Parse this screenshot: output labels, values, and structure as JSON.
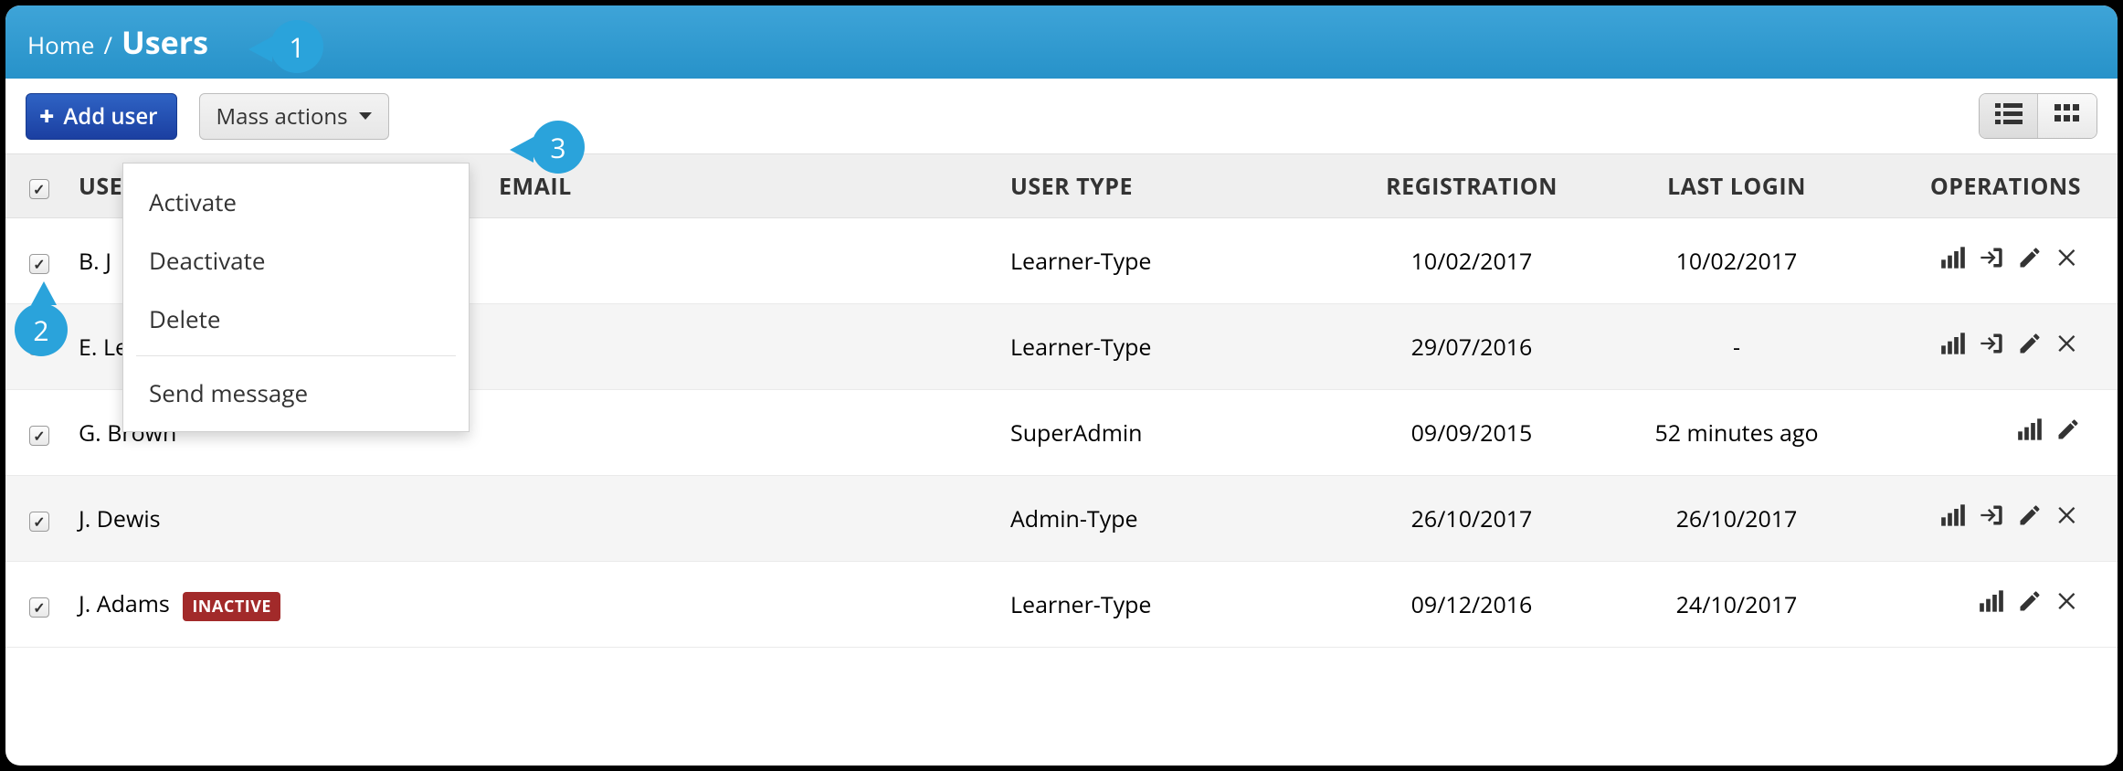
{
  "colors": {
    "header_gradient_top": "#3ea4d8",
    "header_gradient_bottom": "#2792c9",
    "primary_btn_top": "#2f63c4",
    "primary_btn_bottom": "#1b3fa1",
    "callout": "#2aa3db",
    "badge_inactive": "#a22a2a",
    "row_alt": "#f5f5f5",
    "thead_bg": "#efefef",
    "text": "#333333"
  },
  "breadcrumb": {
    "home": "Home",
    "sep": "/",
    "current": "Users"
  },
  "toolbar": {
    "add_user": "Add user",
    "mass_actions": "Mass actions"
  },
  "mass_actions_menu": {
    "activate": "Activate",
    "deactivate": "Deactivate",
    "delete": "Delete",
    "send_message": "Send message"
  },
  "callouts": {
    "c1": "1",
    "c2": "2",
    "c3": "3"
  },
  "columns": {
    "user": "USER",
    "email": "EMAIL",
    "user_type": "USER TYPE",
    "registration": "REGISTRATION",
    "last_login": "LAST LOGIN",
    "operations": "OPERATIONS"
  },
  "badge_inactive": "INACTIVE",
  "header_checkbox_checked": true,
  "rows": [
    {
      "checked": true,
      "name": "B. J",
      "badge": "",
      "email": "",
      "type": "Learner-Type",
      "reg": "10/02/2017",
      "login": "10/02/2017",
      "ops": [
        "stats",
        "login-as",
        "edit",
        "delete"
      ]
    },
    {
      "checked": false,
      "name": "E. Leandros",
      "badge": "",
      "email": "",
      "type": "Learner-Type",
      "reg": "29/07/2016",
      "login": "-",
      "ops": [
        "stats",
        "login-as",
        "edit",
        "delete"
      ]
    },
    {
      "checked": true,
      "name": "G. Brown",
      "badge": "",
      "email": "",
      "type": "SuperAdmin",
      "reg": "09/09/2015",
      "login": "52 minutes ago",
      "ops": [
        "stats",
        "edit"
      ]
    },
    {
      "checked": true,
      "name": "J. Dewis",
      "badge": "",
      "email": "",
      "type": "Admin-Type",
      "reg": "26/10/2017",
      "login": "26/10/2017",
      "ops": [
        "stats",
        "login-as",
        "edit",
        "delete"
      ]
    },
    {
      "checked": true,
      "name": "J. Adams",
      "badge": "INACTIVE",
      "email": "",
      "type": "Learner-Type",
      "reg": "09/12/2016",
      "login": "24/10/2017",
      "ops": [
        "stats",
        "edit",
        "delete"
      ]
    }
  ]
}
